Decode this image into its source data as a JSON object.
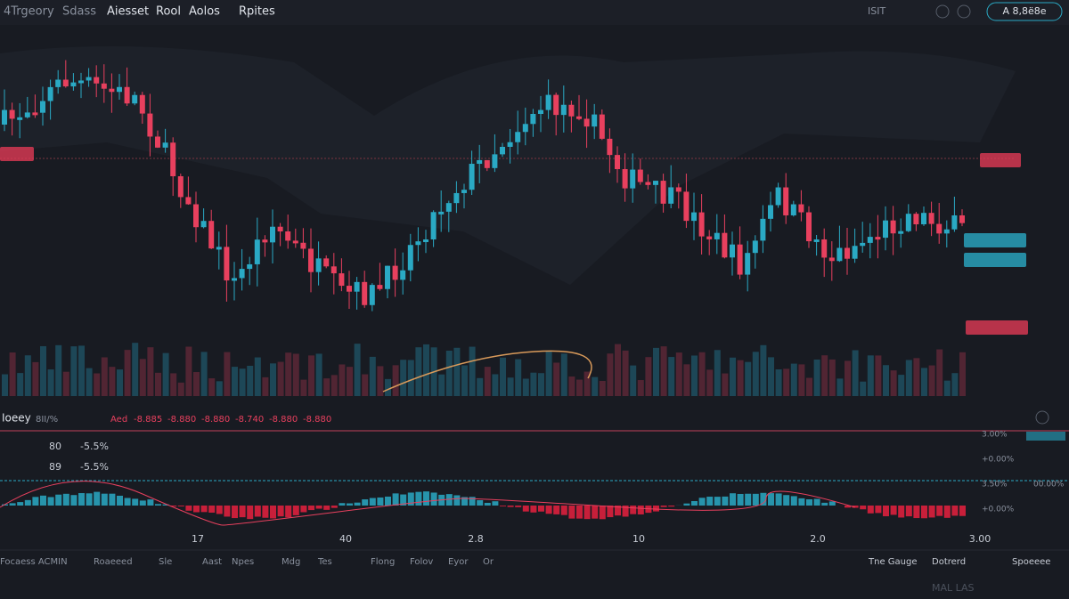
{
  "nav": {
    "items": [
      "4Trgeory",
      "Sdass",
      "Aiesset",
      "Rool",
      "Aolos",
      "Rpites"
    ],
    "right": [
      "ISIT",
      "A 8,8ë8e"
    ]
  },
  "toolbar": {
    "title": "Ioeey",
    "items": [
      "8II/%",
      "Aed",
      "-8.885",
      "-8.880",
      "-8.880",
      "-8.740",
      "-8.880",
      "-8.880"
    ]
  },
  "panel": {
    "left": [
      "80",
      "-5.5%",
      "89",
      "-5.5%"
    ],
    "right_axis": [
      "3.00%",
      "+0.00%",
      "3.50%",
      "+0.00%",
      "00.00%"
    ]
  },
  "x_labels": [
    "17",
    "40",
    "2.8",
    "10",
    "2.0",
    "3.00"
  ],
  "bottom_bar": {
    "left": [
      "Focaess ACMIN",
      "Roaeeed",
      "Sle",
      "Aast",
      "Npes",
      "Mdg",
      "Tes",
      "Flong",
      "Folov",
      "Eyor",
      "Or"
    ],
    "right": [
      "Tne Gauge",
      "Dotrerd",
      "Spoeeee"
    ]
  },
  "footer": "MAL LAS"
}
